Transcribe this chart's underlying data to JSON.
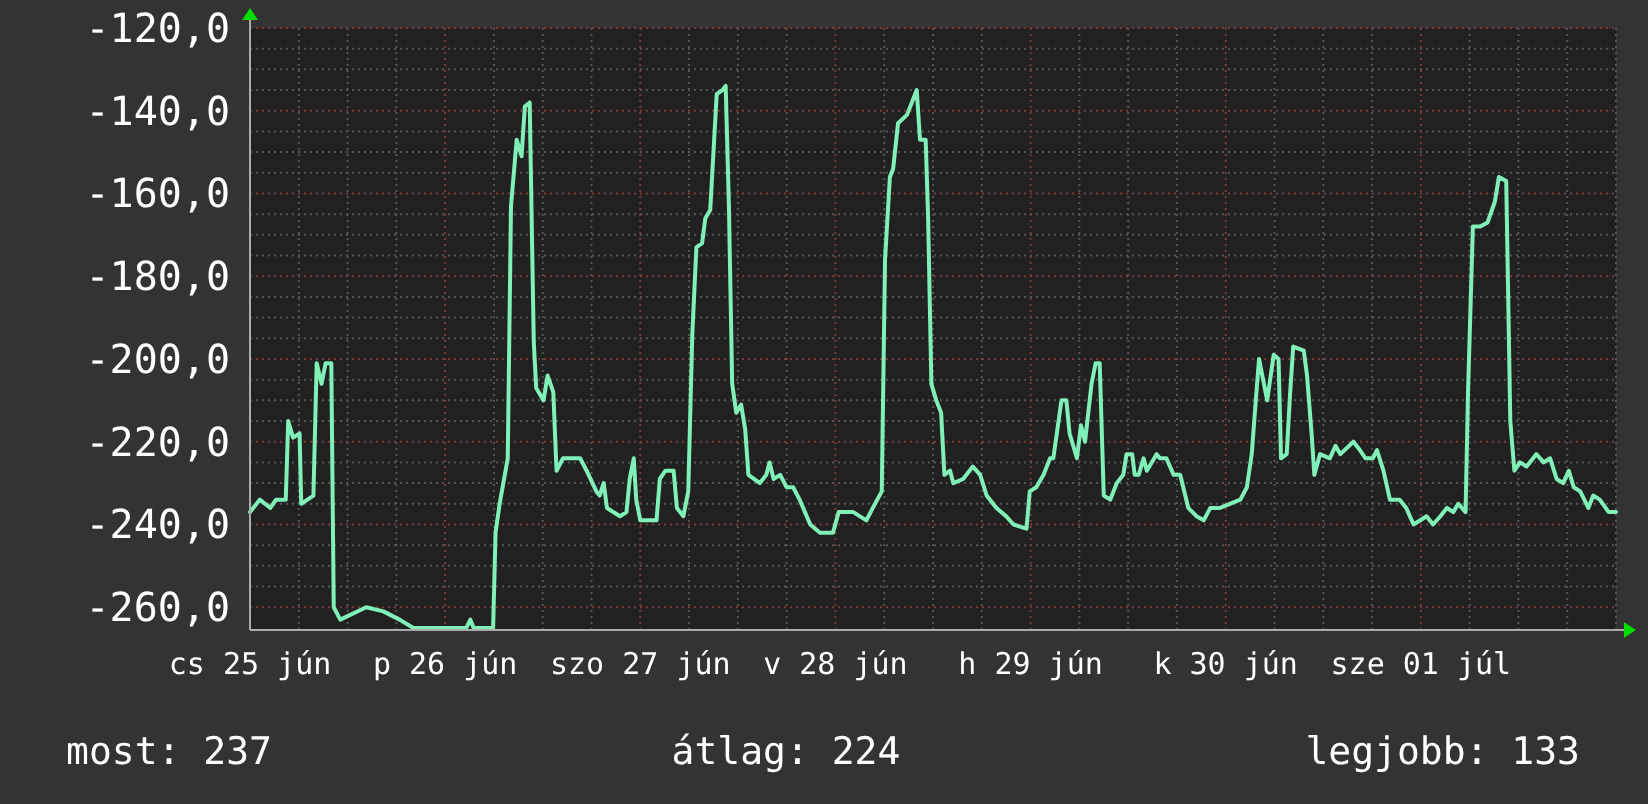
{
  "chart_data": {
    "type": "line",
    "x": [
      "--06-25T00:00",
      "--06-25T01:12",
      "--06-25T02:30",
      "--06-25T03:12",
      "--06-25T04:24",
      "--06-25T04:42",
      "--06-25T05:18",
      "--06-25T06:06",
      "--06-25T06:18",
      "--06-25T07:48",
      "--06-25T08:12",
      "--06-25T08:48",
      "--06-25T09:18",
      "--06-25T10:00",
      "--06-25T10:18",
      "--06-25T11:06",
      "--06-25T14:18",
      "--06-25T16:24",
      "--06-25T18:24",
      "--06-25T20:06",
      "--06-26T02:36",
      "--06-26T03:06",
      "--06-26T03:30",
      "--06-26T05:54",
      "--06-26T06:12",
      "--06-26T06:42",
      "--06-26T07:42",
      "--06-26T08:06",
      "--06-26T08:48",
      "--06-26T09:24",
      "--06-26T09:48",
      "--06-26T10:24",
      "--06-26T10:54",
      "--06-26T11:12",
      "--06-26T12:06",
      "--06-26T12:36",
      "--06-26T13:18",
      "--06-26T13:42",
      "--06-26T14:30",
      "--06-26T16:36",
      "--06-26T17:24",
      "--06-26T18:36",
      "--06-26T19:00",
      "--06-26T19:30",
      "--06-26T19:54",
      "--06-26T21:30",
      "--06-26T22:18",
      "--06-26T22:42",
      "--06-26T23:12",
      "--06-26T23:30",
      "--06-27T00:00",
      "--06-27T02:00",
      "--06-27T02:24",
      "--06-27T03:06",
      "--06-27T04:06",
      "--06-27T04:30",
      "--06-27T05:18",
      "--06-27T05:54",
      "--06-27T06:24",
      "--06-27T06:54",
      "--06-27T07:36",
      "--06-27T08:00",
      "--06-27T08:36",
      "--06-27T09:00",
      "--06-27T09:24",
      "--06-27T10:06",
      "--06-27T10:30",
      "--06-27T10:54",
      "--06-27T11:18",
      "--06-27T11:48",
      "--06-27T12:24",
      "--06-27T12:54",
      "--06-27T13:18",
      "--06-27T14:42",
      "--06-27T15:30",
      "--06-27T15:54",
      "--06-27T16:24",
      "--06-27T17:12",
      "--06-27T18:00",
      "--06-27T18:48",
      "--06-27T19:36",
      "--06-27T20:54",
      "--06-27T22:06",
      "--06-27T22:54",
      "--06-27T23:42",
      "--06-28T00:24",
      "--06-28T02:12",
      "--06-28T03:48",
      "--06-28T04:36",
      "--06-28T05:42",
      "--06-28T06:06",
      "--06-28T06:42",
      "--06-28T07:06",
      "--06-28T07:42",
      "--06-28T08:48",
      "--06-28T09:24",
      "--06-28T10:00",
      "--06-28T10:24",
      "--06-28T11:06",
      "--06-28T11:24",
      "--06-28T11:48",
      "--06-28T12:24",
      "--06-28T13:00",
      "--06-28T13:24",
      "--06-28T14:06",
      "--06-28T14:30",
      "--06-28T15:42",
      "--06-28T16:54",
      "--06-28T17:48",
      "--06-28T18:36",
      "--06-28T19:48",
      "--06-28T21:00",
      "--06-28T21:54",
      "--06-28T23:30",
      "--06-28T23:54",
      "--06-29T00:42",
      "--06-29T01:36",
      "--06-29T02:24",
      "--06-29T02:48",
      "--06-29T03:48",
      "--06-29T04:24",
      "--06-29T04:48",
      "--06-29T05:42",
      "--06-29T06:12",
      "--06-29T06:42",
      "--06-29T07:30",
      "--06-29T08:00",
      "--06-29T08:30",
      "--06-29T09:00",
      "--06-29T09:48",
      "--06-29T10:36",
      "--06-29T11:24",
      "--06-29T11:48",
      "--06-29T12:30",
      "--06-29T12:48",
      "--06-29T13:18",
      "--06-29T13:54",
      "--06-29T14:18",
      "--06-29T15:30",
      "--06-29T15:54",
      "--06-29T16:42",
      "--06-29T17:36",
      "--06-29T18:24",
      "--06-29T19:24",
      "--06-29T20:24",
      "--06-29T21:18",
      "--06-29T22:06",
      "--06-29T23:18",
      "--06-30T01:48",
      "--06-30T02:36",
      "--06-30T03:12",
      "--06-30T03:42",
      "--06-30T04:06",
      "--06-30T04:42",
      "--06-30T05:06",
      "--06-30T05:54",
      "--06-30T06:30",
      "--06-30T06:48",
      "--06-30T07:30",
      "--06-30T07:54",
      "--06-30T08:18",
      "--06-30T09:36",
      "--06-30T10:00",
      "--06-30T10:36",
      "--06-30T10:54",
      "--06-30T11:36",
      "--06-30T12:48",
      "--06-30T13:30",
      "--06-30T14:06",
      "--06-30T15:42",
      "--06-30T16:30",
      "--06-30T17:12",
      "--06-30T18:06",
      "--06-30T18:36",
      "--06-30T19:24",
      "--06-30T20:12",
      "--06-30T21:24",
      "--06-30T22:12",
      "--06-30T23:06",
      "--07-01T00:42",
      "--07-01T01:30",
      "--07-01T02:24",
      "--07-01T03:12",
      "--07-01T04:00",
      "--07-01T04:36",
      "--07-01T05:30",
      "--07-01T05:48",
      "--07-01T06:24",
      "--07-01T07:18",
      "--07-01T08:12",
      "--07-01T09:06",
      "--07-01T09:36",
      "--07-01T10:30",
      "--07-01T11:00",
      "--07-01T11:30",
      "--07-01T12:12",
      "--07-01T13:00",
      "--07-01T14:12",
      "--07-01T15:06",
      "--07-01T15:54",
      "--07-01T16:42",
      "--07-01T17:30",
      "--07-01T18:12",
      "--07-01T18:48",
      "--07-01T19:36",
      "--07-01T20:36",
      "--07-01T21:12",
      "--07-01T22:00",
      "--07-01T23:06",
      "--07-02T00:00"
    ],
    "series": [
      {
        "color": "#80f0b8",
        "values": [
          -237,
          -234,
          -236,
          -234,
          -234,
          -215,
          -219,
          -218,
          -235,
          -233,
          -201,
          -206,
          -201,
          -201,
          -260,
          -263,
          -260,
          -261,
          -263,
          -265,
          -265,
          -263,
          -265,
          -265,
          -242,
          -235,
          -224,
          -163,
          -147,
          -151,
          -139,
          -138,
          -196,
          -207,
          -210,
          -204,
          -208,
          -227,
          -224,
          -224,
          -227,
          -232,
          -233,
          -230,
          -236,
          -238,
          -237,
          -229,
          -224,
          -234,
          -239,
          -239,
          -229,
          -227,
          -227,
          -236,
          -238,
          -232,
          -194,
          -173,
          -172,
          -166,
          -164,
          -150,
          -136,
          -135,
          -134,
          -163,
          -206,
          -213,
          -211,
          -217,
          -228,
          -230,
          -228,
          -225,
          -229,
          -228,
          -231,
          -231,
          -234,
          -240,
          -242,
          -242,
          -242,
          -237,
          -237,
          -239,
          -236,
          -232,
          -176,
          -156,
          -154,
          -143,
          -141,
          -138,
          -135,
          -147,
          -147,
          -166,
          -206,
          -210,
          -213,
          -228,
          -227,
          -230,
          -229,
          -226,
          -228,
          -233,
          -236,
          -238,
          -240,
          -241,
          -232,
          -231,
          -228,
          -224,
          -224,
          -210,
          -210,
          -218,
          -224,
          -216,
          -220,
          -206,
          -201,
          -201,
          -233,
          -234,
          -230,
          -228,
          -223,
          -223,
          -228,
          -228,
          -224,
          -227,
          -223,
          -224,
          -224,
          -228,
          -228,
          -236,
          -238,
          -239,
          -236,
          -236,
          -234,
          -231,
          -223,
          -210,
          -200,
          -206,
          -210,
          -199,
          -200,
          -224,
          -223,
          -209,
          -197,
          -198,
          -204,
          -219,
          -228,
          -223,
          -224,
          -221,
          -223,
          -220,
          -222,
          -224,
          -224,
          -222,
          -227,
          -234,
          -234,
          -236,
          -240,
          -238,
          -240,
          -238,
          -236,
          -237,
          -235,
          -237,
          -208,
          -168,
          -168,
          -167,
          -162,
          -156,
          -157,
          -215,
          -227,
          -225,
          -226,
          -223,
          -225,
          -224,
          -229,
          -230,
          -227,
          -231,
          -232,
          -236,
          -233,
          -234,
          -237,
          -237
        ]
      }
    ],
    "xlim": [
      "--06-25",
      "--07-02"
    ],
    "xticks": [
      {
        "value": "--06-25",
        "label": "cs 25 jún"
      },
      {
        "value": "--06-25T06:00",
        "label": null
      },
      {
        "value": "--06-25T12:00",
        "label": null
      },
      {
        "value": "--06-25T18:00",
        "label": null
      },
      {
        "value": "--06-26",
        "label": "p 26 jún"
      },
      {
        "value": "--06-26T06:00",
        "label": null
      },
      {
        "value": "--06-26T12:00",
        "label": null
      },
      {
        "value": "--06-26T18:00",
        "label": null
      },
      {
        "value": "--06-27",
        "label": "szo 27 jún"
      },
      {
        "value": "--06-27T06:00",
        "label": null
      },
      {
        "value": "--06-27T12:00",
        "label": null
      },
      {
        "value": "--06-27T18:00",
        "label": null
      },
      {
        "value": "--06-28",
        "label": "v 28 jún"
      },
      {
        "value": "--06-28T06:00",
        "label": null
      },
      {
        "value": "--06-28T12:00",
        "label": null
      },
      {
        "value": "--06-28T18:00",
        "label": null
      },
      {
        "value": "--06-29",
        "label": "h 29 jún"
      },
      {
        "value": "--06-29T06:00",
        "label": null
      },
      {
        "value": "--06-29T12:00",
        "label": null
      },
      {
        "value": "--06-29T18:00",
        "label": null
      },
      {
        "value": "--06-30",
        "label": "k 30 jún"
      },
      {
        "value": "--06-30T06:00",
        "label": null
      },
      {
        "value": "--06-30T12:00",
        "label": null
      },
      {
        "value": "--06-30T18:00",
        "label": null
      },
      {
        "value": "--07-01",
        "label": "sze 01 júl"
      },
      {
        "value": "--07-01T06:00",
        "label": null
      },
      {
        "value": "--07-01T12:00",
        "label": null
      },
      {
        "value": "--07-01T18:00",
        "label": null
      },
      {
        "value": "--07-02",
        "label": null
      }
    ],
    "ylim": [
      -265.5,
      -120
    ],
    "yticks": [
      {
        "value": -260,
        "label": "-260,0"
      },
      {
        "value": -255,
        "label": null
      },
      {
        "value": -250,
        "label": null
      },
      {
        "value": -245,
        "label": null
      },
      {
        "value": -240,
        "label": "-240,0"
      },
      {
        "value": -235,
        "label": null
      },
      {
        "value": -230,
        "label": null
      },
      {
        "value": -225,
        "label": null
      },
      {
        "value": -220,
        "label": "-220,0"
      },
      {
        "value": -215,
        "label": null
      },
      {
        "value": -210,
        "label": null
      },
      {
        "value": -205,
        "label": null
      },
      {
        "value": -200,
        "label": "-200,0"
      },
      {
        "value": -195,
        "label": null
      },
      {
        "value": -190,
        "label": null
      },
      {
        "value": -185,
        "label": null
      },
      {
        "value": -180,
        "label": "-180,0"
      },
      {
        "value": -175,
        "label": null
      },
      {
        "value": -170,
        "label": null
      },
      {
        "value": -165,
        "label": null
      },
      {
        "value": -160,
        "label": "-160,0"
      },
      {
        "value": -155,
        "label": null
      },
      {
        "value": -150,
        "label": null
      },
      {
        "value": -145,
        "label": null
      },
      {
        "value": -140,
        "label": "-140,0"
      },
      {
        "value": -135,
        "label": null
      },
      {
        "value": -130,
        "label": null
      },
      {
        "value": -125,
        "label": null
      },
      {
        "value": -120,
        "label": "-120,0"
      }
    ],
    "grid": true,
    "annotations": [
      "most: 237",
      "átlag: 224",
      "legjobb: 133"
    ]
  }
}
